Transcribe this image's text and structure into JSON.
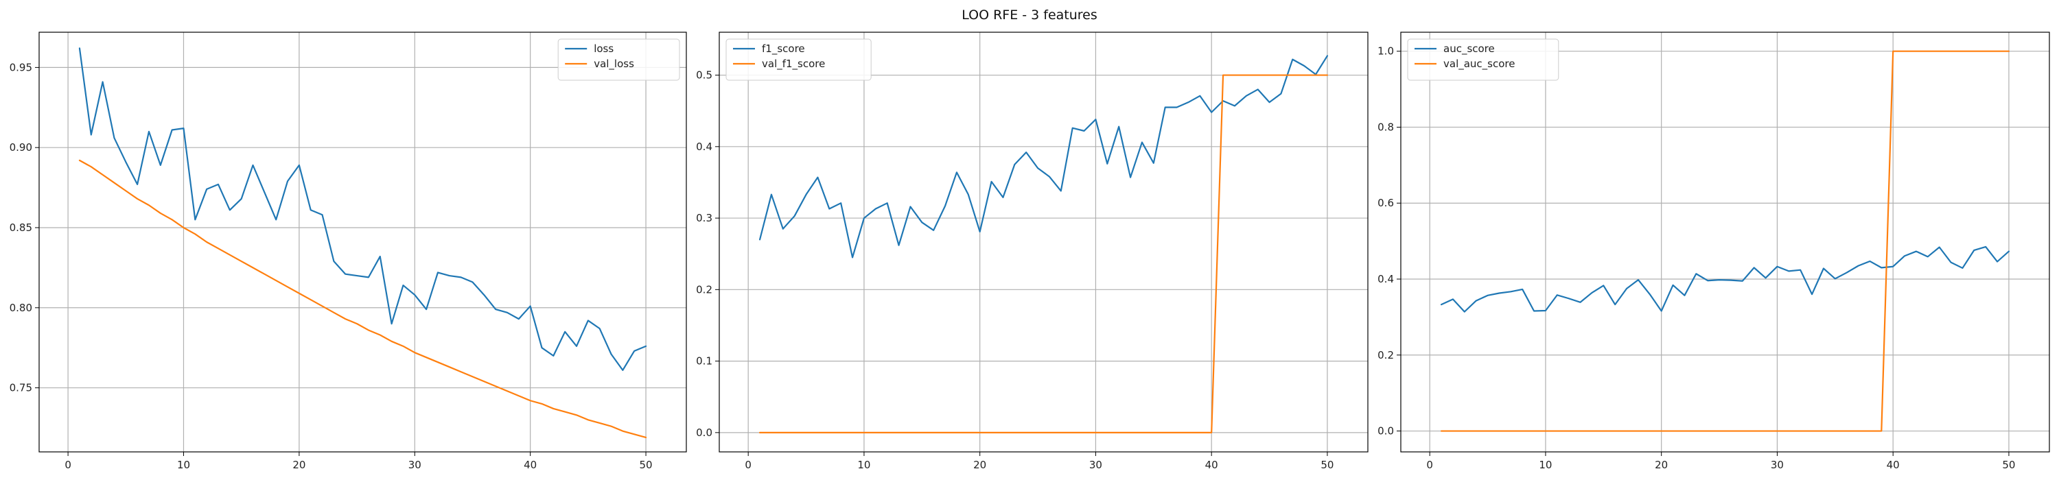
{
  "figure": {
    "title": "LOO RFE - 3 features"
  },
  "colors": {
    "blue": "#1f77b4",
    "orange": "#ff7f0e",
    "grid": "#b0b0b0",
    "axis": "#000000"
  },
  "chart_data": [
    {
      "type": "line",
      "title": "",
      "xlabel": "",
      "ylabel": "",
      "xlim": [
        -2.5,
        53.5
      ],
      "ylim": [
        0.71,
        0.972
      ],
      "xticks": [
        0,
        10,
        20,
        30,
        40,
        50
      ],
      "yticks": [
        0.75,
        0.8,
        0.85,
        0.9,
        0.95
      ],
      "ytick_labels": [
        "0.75",
        "0.80",
        "0.85",
        "0.90",
        "0.95"
      ],
      "grid": true,
      "legend": "top-right",
      "x": [
        1,
        2,
        3,
        4,
        5,
        6,
        7,
        8,
        9,
        10,
        11,
        12,
        13,
        14,
        15,
        16,
        17,
        18,
        19,
        20,
        21,
        22,
        23,
        24,
        25,
        26,
        27,
        28,
        29,
        30,
        31,
        32,
        33,
        34,
        35,
        36,
        37,
        38,
        39,
        40,
        41,
        42,
        43,
        44,
        45,
        46,
        47,
        48,
        49,
        50
      ],
      "series": [
        {
          "name": "loss",
          "color": "#1f77b4",
          "values": [
            0.962,
            0.908,
            0.941,
            0.906,
            0.891,
            0.877,
            0.91,
            0.889,
            0.911,
            0.912,
            0.855,
            0.874,
            0.877,
            0.861,
            0.868,
            0.889,
            0.872,
            0.855,
            0.879,
            0.889,
            0.861,
            0.858,
            0.829,
            0.821,
            0.82,
            0.819,
            0.832,
            0.79,
            0.814,
            0.808,
            0.799,
            0.822,
            0.82,
            0.819,
            0.816,
            0.808,
            0.799,
            0.797,
            0.793,
            0.801,
            0.775,
            0.77,
            0.785,
            0.776,
            0.792,
            0.787,
            0.771,
            0.761,
            0.773,
            0.776
          ]
        },
        {
          "name": "val_loss",
          "color": "#ff7f0e",
          "values": [
            0.892,
            0.888,
            0.883,
            0.878,
            0.873,
            0.868,
            0.864,
            0.859,
            0.855,
            0.85,
            0.846,
            0.841,
            0.837,
            0.833,
            0.829,
            0.825,
            0.821,
            0.817,
            0.813,
            0.809,
            0.805,
            0.801,
            0.797,
            0.793,
            0.79,
            0.786,
            0.783,
            0.779,
            0.776,
            0.772,
            0.769,
            0.766,
            0.763,
            0.76,
            0.757,
            0.754,
            0.751,
            0.748,
            0.745,
            0.742,
            0.74,
            0.737,
            0.735,
            0.733,
            0.73,
            0.728,
            0.726,
            0.723,
            0.721,
            0.719
          ]
        }
      ]
    },
    {
      "type": "line",
      "title": "",
      "xlabel": "",
      "ylabel": "",
      "xlim": [
        -2.5,
        53.5
      ],
      "ylim": [
        -0.027,
        0.56
      ],
      "xticks": [
        0,
        10,
        20,
        30,
        40,
        50
      ],
      "yticks": [
        0.0,
        0.1,
        0.2,
        0.3,
        0.4,
        0.5
      ],
      "ytick_labels": [
        "0.0",
        "0.1",
        "0.2",
        "0.3",
        "0.4",
        "0.5"
      ],
      "grid": true,
      "legend": "top-left",
      "x": [
        1,
        2,
        3,
        4,
        5,
        6,
        7,
        8,
        9,
        10,
        11,
        12,
        13,
        14,
        15,
        16,
        17,
        18,
        19,
        20,
        21,
        22,
        23,
        24,
        25,
        26,
        27,
        28,
        29,
        30,
        31,
        32,
        33,
        34,
        35,
        36,
        37,
        38,
        39,
        40,
        41,
        42,
        43,
        44,
        45,
        46,
        47,
        48,
        49,
        50
      ],
      "series": [
        {
          "name": "f1_score",
          "color": "#1f77b4",
          "values": [
            0.27,
            0.333,
            0.285,
            0.303,
            0.333,
            0.357,
            0.313,
            0.321,
            0.245,
            0.3,
            0.313,
            0.321,
            0.262,
            0.316,
            0.294,
            0.283,
            0.317,
            0.364,
            0.333,
            0.281,
            0.351,
            0.329,
            0.375,
            0.392,
            0.37,
            0.358,
            0.338,
            0.426,
            0.422,
            0.438,
            0.376,
            0.428,
            0.357,
            0.406,
            0.377,
            0.455,
            0.455,
            0.462,
            0.471,
            0.448,
            0.464,
            0.457,
            0.471,
            0.48,
            0.462,
            0.474,
            0.522,
            0.513,
            0.501,
            0.527
          ]
        },
        {
          "name": "val_f1_score",
          "color": "#ff7f0e",
          "values": [
            0,
            0,
            0,
            0,
            0,
            0,
            0,
            0,
            0,
            0,
            0,
            0,
            0,
            0,
            0,
            0,
            0,
            0,
            0,
            0,
            0,
            0,
            0,
            0,
            0,
            0,
            0,
            0,
            0,
            0,
            0,
            0,
            0,
            0,
            0,
            0,
            0,
            0,
            0,
            0,
            0.5,
            0.5,
            0.5,
            0.5,
            0.5,
            0.5,
            0.5,
            0.5,
            0.5,
            0.5
          ]
        }
      ]
    },
    {
      "type": "line",
      "title": "",
      "xlabel": "",
      "ylabel": "",
      "xlim": [
        -2.5,
        53.5
      ],
      "ylim": [
        -0.055,
        1.05
      ],
      "xticks": [
        0,
        10,
        20,
        30,
        40,
        50
      ],
      "yticks": [
        0.0,
        0.2,
        0.4,
        0.6,
        0.8,
        1.0
      ],
      "ytick_labels": [
        "0.0",
        "0.2",
        "0.4",
        "0.6",
        "0.8",
        "1.0"
      ],
      "grid": true,
      "legend": "top-left",
      "x": [
        1,
        2,
        3,
        4,
        5,
        6,
        7,
        8,
        9,
        10,
        11,
        12,
        13,
        14,
        15,
        16,
        17,
        18,
        19,
        20,
        21,
        22,
        23,
        24,
        25,
        26,
        27,
        28,
        29,
        30,
        31,
        32,
        33,
        34,
        35,
        36,
        37,
        38,
        39,
        40,
        41,
        42,
        43,
        44,
        45,
        46,
        47,
        48,
        49,
        50
      ],
      "series": [
        {
          "name": "auc_score",
          "color": "#1f77b4",
          "values": [
            0.333,
            0.347,
            0.314,
            0.343,
            0.357,
            0.363,
            0.367,
            0.373,
            0.316,
            0.317,
            0.358,
            0.349,
            0.339,
            0.364,
            0.383,
            0.333,
            0.375,
            0.398,
            0.36,
            0.316,
            0.384,
            0.357,
            0.414,
            0.396,
            0.398,
            0.397,
            0.395,
            0.43,
            0.403,
            0.433,
            0.421,
            0.424,
            0.36,
            0.428,
            0.401,
            0.417,
            0.435,
            0.447,
            0.43,
            0.433,
            0.461,
            0.473,
            0.459,
            0.484,
            0.444,
            0.429,
            0.476,
            0.485,
            0.446,
            0.473
          ]
        },
        {
          "name": "val_auc_score",
          "color": "#ff7f0e",
          "values": [
            0,
            0,
            0,
            0,
            0,
            0,
            0,
            0,
            0,
            0,
            0,
            0,
            0,
            0,
            0,
            0,
            0,
            0,
            0,
            0,
            0,
            0,
            0,
            0,
            0,
            0,
            0,
            0,
            0,
            0,
            0,
            0,
            0,
            0,
            0,
            0,
            0,
            0,
            0,
            1,
            1,
            1,
            1,
            1,
            1,
            1,
            1,
            1,
            1,
            1
          ]
        }
      ]
    }
  ]
}
